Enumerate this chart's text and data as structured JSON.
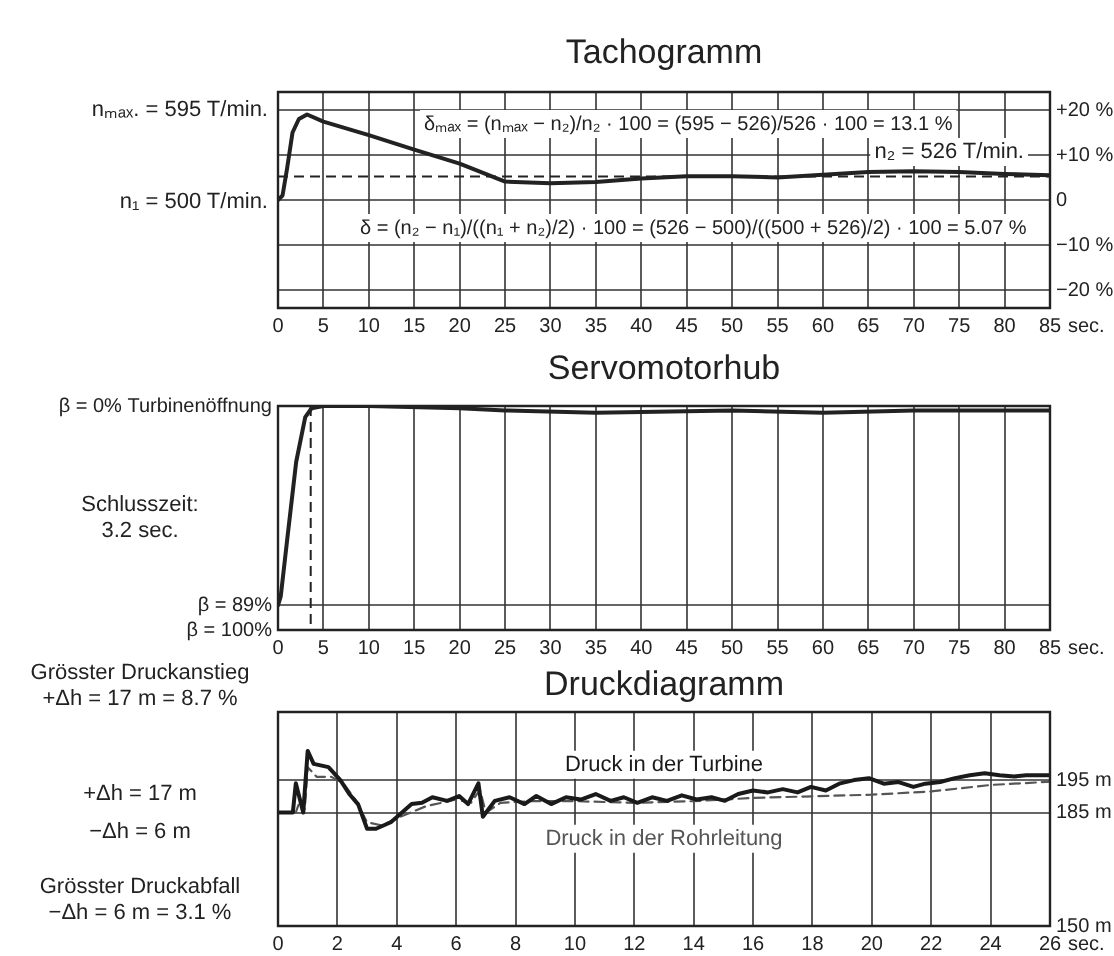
{
  "chart_data": [
    {
      "type": "line",
      "title": "Tachogramm",
      "xlabel": "sec.",
      "x": [
        0,
        0.5,
        1,
        1.6,
        2.3,
        3.2,
        5,
        10,
        15,
        20,
        25,
        30,
        35,
        40,
        45,
        50,
        55,
        60,
        65,
        70,
        75,
        80,
        85
      ],
      "series": [
        {
          "color": "#222222",
          "values": [
            0,
            1,
            7,
            15,
            18,
            19,
            17.4,
            14.4,
            11.2,
            8.1,
            4.1,
            3.7,
            4,
            4.8,
            5.3,
            5.3,
            5,
            5.6,
            6.2,
            6.4,
            6.2,
            5.8,
            5.5
          ]
        }
      ],
      "xlim": [
        0,
        85
      ],
      "xticks": [
        0,
        5,
        10,
        15,
        20,
        25,
        30,
        35,
        40,
        45,
        50,
        55,
        60,
        65,
        70,
        75,
        80,
        85
      ],
      "ylim": [
        -24,
        24
      ],
      "yticks": [
        {
          "value": 20,
          "label": "+20 %"
        },
        {
          "value": 10,
          "label": "+10 %"
        },
        0,
        {
          "value": -10,
          "label": "−10 %"
        },
        {
          "value": -20,
          "label": "−20 %"
        }
      ],
      "grid": true,
      "ref_lines": [
        {
          "axis": "y",
          "value": 5.2,
          "line_style": "dashed"
        }
      ],
      "annotations": [
        "nₘₐₓ. = 595 T/min.",
        "n₁ = 500 T/min.",
        "n₂ = 526 T/min.",
        "δₘₐₓ = (nₘₐₓ − n₂)/n₂ · 100 = (595 − 526)/526 · 100 = 13.1 %",
        "δ = (n₂ − n₁)/((n₁ + n₂)/2) · 100 = (526 − 500)/((500 + 526)/2) · 100 = 5.07 %"
      ]
    },
    {
      "type": "line",
      "title": "Servomotorhub",
      "xlabel": "sec.",
      "x": [
        0,
        0.3,
        1,
        2,
        3,
        3.7,
        5,
        10,
        20,
        25,
        35,
        50,
        60,
        70,
        85
      ],
      "series": [
        {
          "color": "#222222",
          "values": [
            89,
            85,
            60,
            25,
            5,
            1,
            0,
            0,
            1,
            2,
            3,
            2,
            3,
            2,
            2
          ]
        }
      ],
      "xlim": [
        0,
        85
      ],
      "xticks": [
        0,
        5,
        10,
        15,
        20,
        25,
        30,
        35,
        40,
        45,
        50,
        55,
        60,
        65,
        70,
        75,
        80,
        85
      ],
      "ylim": [
        100,
        0
      ],
      "yticks": [
        {
          "value": 0,
          "label": "β = 0% Turbinenöffnung"
        },
        {
          "value": 89,
          "label": "β = 89%"
        },
        {
          "value": 100,
          "label": "β = 100%"
        }
      ],
      "grid": true,
      "ref_lines": [
        {
          "axis": "x",
          "value": 3.6,
          "line_style": "dashed"
        }
      ],
      "annotations": [
        "Schlusszeit:\n3.2 sec."
      ]
    },
    {
      "type": "line",
      "title": "Druckdiagramm",
      "xlabel": "sec.",
      "series": [
        {
          "name": "Druck in der Turbine",
          "color": "#1a1a1a",
          "x": [
            0,
            0.5,
            0.6,
            0.85,
            1,
            1.2,
            1.7,
            2.1,
            2.4,
            2.7,
            3,
            3.3,
            3.8,
            4.1,
            4.5,
            4.85,
            5.2,
            5.7,
            6.1,
            6.4,
            6.75,
            6.9,
            7.3,
            7.8,
            8.3,
            8.7,
            9.2,
            9.7,
            10.2,
            10.7,
            11.2,
            11.65,
            12.1,
            12.6,
            13.1,
            13.6,
            14.1,
            14.6,
            15.05,
            15.5,
            16,
            16.5,
            17,
            17.5,
            17.95,
            18.45,
            18.9,
            19.4,
            19.9,
            20.4,
            20.9,
            21.4,
            21.8,
            22.3,
            22.8,
            23.3,
            23.8,
            24.3,
            24.8,
            25.2,
            26
          ],
          "values": [
            185,
            185,
            194,
            185,
            204,
            200,
            199,
            195,
            190.7,
            187.5,
            180,
            180,
            182,
            184.4,
            187.6,
            188,
            189.7,
            188.6,
            190.1,
            187.6,
            194,
            183.7,
            188.6,
            189.7,
            187.6,
            190.1,
            187.6,
            189.7,
            189,
            190.7,
            188.6,
            189.7,
            188,
            189.7,
            188.6,
            190.3,
            189,
            189.7,
            188.6,
            190.7,
            191.8,
            191.2,
            192.2,
            191.2,
            192.9,
            191.8,
            193.9,
            195,
            195.6,
            193.9,
            194.4,
            192.9,
            193.9,
            194.4,
            195.6,
            196.5,
            197.1,
            196.5,
            196.1,
            196.5,
            196.5
          ]
        },
        {
          "name": "Druck in der Rohrleitung",
          "color": "#555555",
          "line_style": "dashed",
          "x": [
            0,
            0.6,
            0.75,
            0.9,
            1,
            1.3,
            1.8,
            2.2,
            2.6,
            3,
            3.5,
            4.2,
            5,
            6,
            6.5,
            6.8,
            7,
            7.5,
            8.5,
            10,
            12,
            14,
            16,
            18,
            20,
            22,
            24,
            26
          ],
          "values": [
            185,
            185,
            189,
            186,
            199,
            196,
            196,
            194,
            189,
            182,
            181,
            184,
            187,
            189,
            188,
            192,
            185,
            188,
            188.5,
            188.5,
            188,
            188.5,
            189.5,
            190,
            190.5,
            191.5,
            193.5,
            194.5
          ]
        }
      ],
      "xlim": [
        0,
        26
      ],
      "xticks": [
        0,
        2,
        4,
        6,
        8,
        10,
        12,
        14,
        16,
        18,
        20,
        22,
        24,
        26
      ],
      "ylim": [
        150,
        216
      ],
      "yticks": [
        {
          "value": 195,
          "label": "195 m"
        },
        {
          "value": 185,
          "label": "185 m"
        },
        {
          "value": 150,
          "label": "150 m"
        }
      ],
      "grid": true,
      "annotations": [
        "Grösster Druckanstieg\n+Δh = 17 m = 8.7 %",
        "+Δh = 17 m",
        "−Δh = 6 m",
        "Grösster Druckabfall\n−Δh = 6 m = 3.1 %"
      ]
    }
  ]
}
